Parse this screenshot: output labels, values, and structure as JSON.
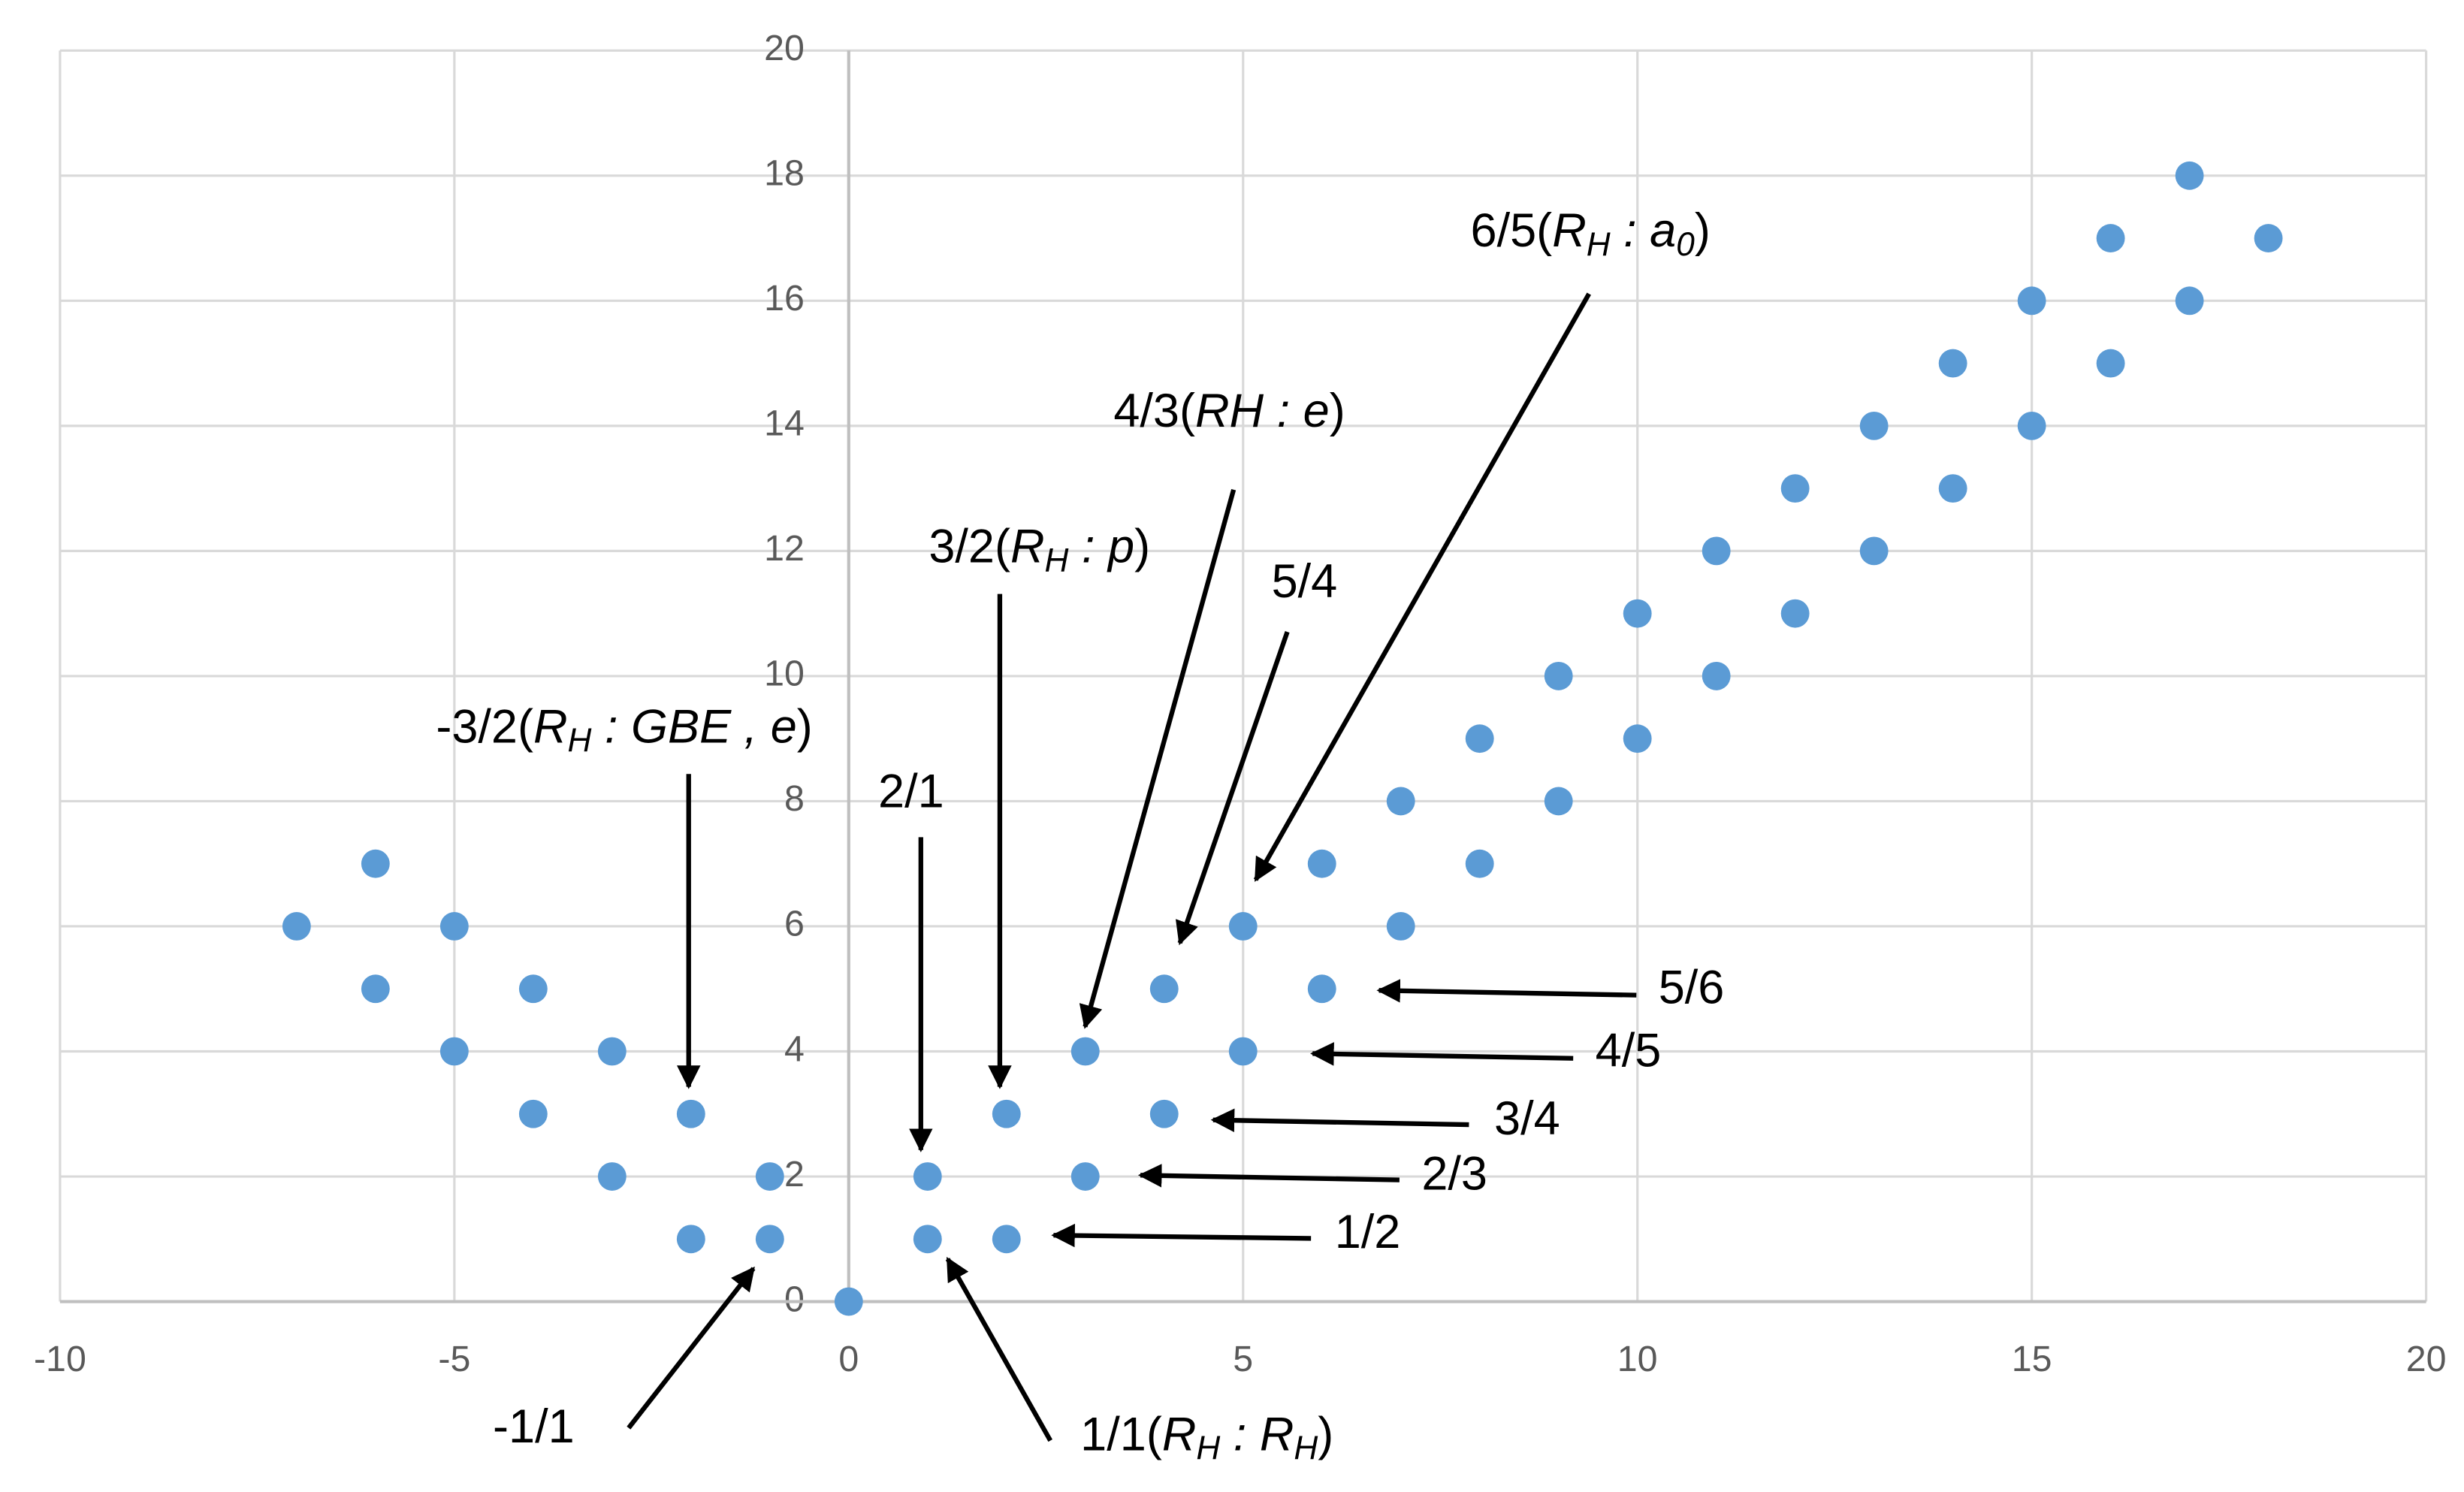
{
  "chart_data": {
    "type": "scatter",
    "xlim": [
      -10,
      20
    ],
    "ylim": [
      0,
      20
    ],
    "xticks": [
      -10,
      -5,
      0,
      5,
      10,
      15,
      20
    ],
    "yticks": [
      0,
      2,
      4,
      6,
      8,
      10,
      12,
      14,
      16,
      18,
      20
    ],
    "grid": true,
    "series": [
      {
        "color": "#5b9bd5",
        "x": [
          0,
          1,
          2,
          -1,
          -2,
          1,
          3,
          -1,
          -3,
          2,
          4,
          -2,
          -4,
          3,
          5,
          -3,
          -5,
          4,
          6,
          -4,
          -6,
          5,
          7,
          -5,
          -7,
          6,
          8,
          -6,
          7,
          9,
          8,
          10,
          9,
          11,
          10,
          12,
          11,
          13,
          12,
          14,
          13,
          15,
          14,
          16,
          15,
          17,
          16,
          18,
          17
        ],
        "values": [
          0,
          1,
          1,
          1,
          1,
          2,
          2,
          2,
          2,
          3,
          3,
          3,
          3,
          4,
          4,
          4,
          4,
          5,
          5,
          5,
          5,
          6,
          6,
          6,
          6,
          7,
          7,
          7,
          8,
          8,
          9,
          9,
          10,
          10,
          11,
          11,
          12,
          12,
          13,
          13,
          14,
          14,
          15,
          15,
          16,
          16,
          17,
          17,
          18
        ]
      }
    ],
    "annotations": [
      {
        "parts": [
          {
            "text": "-3/2(",
            "style": "normal"
          },
          {
            "text": "R",
            "style": "italic"
          },
          {
            "text": "H",
            "style": "sub"
          },
          {
            "text": " : GBE , e",
            "style": "italic"
          },
          {
            "text": ")",
            "style": "normal"
          }
        ]
      },
      {
        "parts": [
          {
            "text": "2/1",
            "style": "normal"
          }
        ]
      },
      {
        "parts": [
          {
            "text": "3/2(",
            "style": "normal"
          },
          {
            "text": "R",
            "style": "italic"
          },
          {
            "text": "H",
            "style": "sub"
          },
          {
            "text": " : p",
            "style": "italic"
          },
          {
            "text": ")",
            "style": "normal"
          }
        ]
      },
      {
        "parts": [
          {
            "text": "4/3(",
            "style": "normal"
          },
          {
            "text": "RH : e",
            "style": "italic"
          },
          {
            "text": ")",
            "style": "normal"
          }
        ]
      },
      {
        "parts": [
          {
            "text": "5/4",
            "style": "normal"
          }
        ]
      },
      {
        "parts": [
          {
            "text": "6/5(",
            "style": "normal"
          },
          {
            "text": "R",
            "style": "italic"
          },
          {
            "text": "H",
            "style": "sub"
          },
          {
            "text": " : a",
            "style": "italic"
          },
          {
            "text": "0",
            "style": "sub"
          },
          {
            "text": ")",
            "style": "normal"
          }
        ]
      },
      {
        "parts": [
          {
            "text": "5/6",
            "style": "normal"
          }
        ]
      },
      {
        "parts": [
          {
            "text": "4/5",
            "style": "normal"
          }
        ]
      },
      {
        "parts": [
          {
            "text": "3/4",
            "style": "normal"
          }
        ]
      },
      {
        "parts": [
          {
            "text": "2/3",
            "style": "normal"
          }
        ]
      },
      {
        "parts": [
          {
            "text": "1/2",
            "style": "normal"
          }
        ]
      },
      {
        "parts": [
          {
            "text": "-1/1",
            "style": "normal"
          }
        ]
      },
      {
        "parts": [
          {
            "text": "1/1(",
            "style": "normal"
          },
          {
            "text": "R",
            "style": "italic"
          },
          {
            "text": "H",
            "style": "sub"
          },
          {
            "text": " : R",
            "style": "italic"
          },
          {
            "text": "H",
            "style": "sub"
          },
          {
            "text": ")",
            "style": "normal"
          }
        ]
      }
    ]
  }
}
